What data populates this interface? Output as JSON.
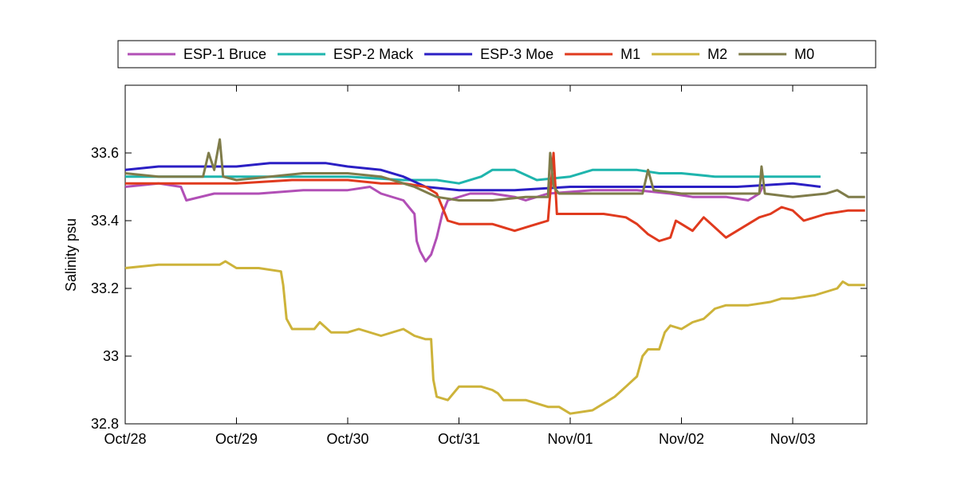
{
  "chart_data": {
    "type": "line",
    "title": "",
    "xlabel": "",
    "ylabel": "Salinity psu",
    "x_ticks": [
      "Oct/28",
      "Oct/29",
      "Oct/30",
      "Oct/31",
      "Nov/01",
      "Nov/02",
      "Nov/03"
    ],
    "xlim_days": [
      0,
      6.65
    ],
    "ylim": [
      32.8,
      33.8
    ],
    "y_ticks": [
      32.8,
      33.0,
      33.2,
      33.4,
      33.6
    ],
    "y_tick_labels": [
      "32.8",
      "33",
      "33.2",
      "33.4",
      "33.6"
    ],
    "grid": false,
    "legend_position": "top, outside, horizontal",
    "series": [
      {
        "name": "ESP-1 Bruce",
        "color": "#b14fb6",
        "points": [
          [
            0,
            33.5
          ],
          [
            0.3,
            33.51
          ],
          [
            0.5,
            33.5
          ],
          [
            0.55,
            33.46
          ],
          [
            0.8,
            33.48
          ],
          [
            1.2,
            33.48
          ],
          [
            1.6,
            33.49
          ],
          [
            2.0,
            33.49
          ],
          [
            2.2,
            33.5
          ],
          [
            2.3,
            33.48
          ],
          [
            2.5,
            33.46
          ],
          [
            2.55,
            33.44
          ],
          [
            2.6,
            33.42
          ],
          [
            2.62,
            33.34
          ],
          [
            2.65,
            33.31
          ],
          [
            2.7,
            33.28
          ],
          [
            2.75,
            33.3
          ],
          [
            2.8,
            33.35
          ],
          [
            2.85,
            33.42
          ],
          [
            2.9,
            33.46
          ],
          [
            3.1,
            33.48
          ],
          [
            3.3,
            33.48
          ],
          [
            3.5,
            33.47
          ],
          [
            3.6,
            33.46
          ],
          [
            3.8,
            33.48
          ],
          [
            4.2,
            33.49
          ],
          [
            4.6,
            33.49
          ],
          [
            4.9,
            33.48
          ],
          [
            5.1,
            33.47
          ],
          [
            5.4,
            33.47
          ],
          [
            5.6,
            33.46
          ],
          [
            5.7,
            33.48
          ],
          [
            5.73,
            33.5
          ]
        ]
      },
      {
        "name": "ESP-2 Mack",
        "color": "#1fb5ad",
        "points": [
          [
            0,
            33.53
          ],
          [
            0.5,
            33.53
          ],
          [
            1.0,
            33.53
          ],
          [
            1.5,
            33.53
          ],
          [
            2.0,
            33.53
          ],
          [
            2.5,
            33.52
          ],
          [
            2.8,
            33.52
          ],
          [
            3.0,
            33.51
          ],
          [
            3.2,
            33.53
          ],
          [
            3.3,
            33.55
          ],
          [
            3.5,
            33.55
          ],
          [
            3.7,
            33.52
          ],
          [
            4.0,
            33.53
          ],
          [
            4.2,
            33.55
          ],
          [
            4.4,
            33.55
          ],
          [
            4.6,
            33.55
          ],
          [
            4.8,
            33.54
          ],
          [
            5.0,
            33.54
          ],
          [
            5.3,
            33.53
          ],
          [
            5.5,
            33.53
          ],
          [
            5.8,
            33.53
          ],
          [
            6.0,
            33.53
          ],
          [
            6.25,
            33.53
          ]
        ]
      },
      {
        "name": "ESP-3 Moe",
        "color": "#2b1fc4",
        "points": [
          [
            0,
            33.55
          ],
          [
            0.3,
            33.56
          ],
          [
            0.6,
            33.56
          ],
          [
            1.0,
            33.56
          ],
          [
            1.3,
            33.57
          ],
          [
            1.6,
            33.57
          ],
          [
            1.8,
            33.57
          ],
          [
            2.0,
            33.56
          ],
          [
            2.3,
            33.55
          ],
          [
            2.5,
            33.53
          ],
          [
            2.7,
            33.5
          ],
          [
            3.0,
            33.49
          ],
          [
            3.5,
            33.49
          ],
          [
            4.0,
            33.5
          ],
          [
            4.5,
            33.5
          ],
          [
            5.0,
            33.5
          ],
          [
            5.5,
            33.5
          ],
          [
            6.0,
            33.51
          ],
          [
            6.25,
            33.5
          ]
        ]
      },
      {
        "name": "M1",
        "color": "#e03a1e",
        "points": [
          [
            0,
            33.51
          ],
          [
            0.5,
            33.51
          ],
          [
            1.0,
            33.51
          ],
          [
            1.5,
            33.52
          ],
          [
            2.0,
            33.52
          ],
          [
            2.3,
            33.51
          ],
          [
            2.5,
            33.51
          ],
          [
            2.7,
            33.5
          ],
          [
            2.8,
            33.48
          ],
          [
            2.85,
            33.44
          ],
          [
            2.9,
            33.4
          ],
          [
            3.0,
            33.39
          ],
          [
            3.3,
            33.39
          ],
          [
            3.5,
            33.37
          ],
          [
            3.7,
            33.39
          ],
          [
            3.8,
            33.4
          ],
          [
            3.85,
            33.6
          ],
          [
            3.88,
            33.42
          ],
          [
            4.0,
            33.42
          ],
          [
            4.3,
            33.42
          ],
          [
            4.5,
            33.41
          ],
          [
            4.6,
            33.39
          ],
          [
            4.7,
            33.36
          ],
          [
            4.8,
            33.34
          ],
          [
            4.9,
            33.35
          ],
          [
            4.95,
            33.4
          ],
          [
            5.0,
            33.39
          ],
          [
            5.1,
            33.37
          ],
          [
            5.2,
            33.41
          ],
          [
            5.3,
            33.38
          ],
          [
            5.4,
            33.35
          ],
          [
            5.5,
            33.37
          ],
          [
            5.7,
            33.41
          ],
          [
            5.8,
            33.42
          ],
          [
            5.9,
            33.44
          ],
          [
            6.0,
            33.43
          ],
          [
            6.1,
            33.4
          ],
          [
            6.3,
            33.42
          ],
          [
            6.5,
            33.43
          ],
          [
            6.65,
            33.43
          ]
        ]
      },
      {
        "name": "M2",
        "color": "#cdb33a",
        "points": [
          [
            0,
            33.26
          ],
          [
            0.3,
            33.27
          ],
          [
            0.6,
            33.27
          ],
          [
            0.85,
            33.27
          ],
          [
            0.9,
            33.28
          ],
          [
            1.0,
            33.26
          ],
          [
            1.2,
            33.26
          ],
          [
            1.4,
            33.25
          ],
          [
            1.42,
            33.21
          ],
          [
            1.45,
            33.11
          ],
          [
            1.5,
            33.08
          ],
          [
            1.7,
            33.08
          ],
          [
            1.75,
            33.1
          ],
          [
            1.85,
            33.07
          ],
          [
            2.0,
            33.07
          ],
          [
            2.1,
            33.08
          ],
          [
            2.3,
            33.06
          ],
          [
            2.5,
            33.08
          ],
          [
            2.6,
            33.06
          ],
          [
            2.7,
            33.05
          ],
          [
            2.75,
            33.05
          ],
          [
            2.77,
            32.93
          ],
          [
            2.8,
            32.88
          ],
          [
            2.9,
            32.87
          ],
          [
            3.0,
            32.91
          ],
          [
            3.2,
            32.91
          ],
          [
            3.3,
            32.9
          ],
          [
            3.35,
            32.89
          ],
          [
            3.4,
            32.87
          ],
          [
            3.6,
            32.87
          ],
          [
            3.8,
            32.85
          ],
          [
            3.9,
            32.85
          ],
          [
            4.0,
            32.83
          ],
          [
            4.2,
            32.84
          ],
          [
            4.3,
            32.86
          ],
          [
            4.4,
            32.88
          ],
          [
            4.5,
            32.91
          ],
          [
            4.6,
            32.94
          ],
          [
            4.65,
            33.0
          ],
          [
            4.7,
            33.02
          ],
          [
            4.8,
            33.02
          ],
          [
            4.85,
            33.07
          ],
          [
            4.9,
            33.09
          ],
          [
            5.0,
            33.08
          ],
          [
            5.1,
            33.1
          ],
          [
            5.2,
            33.11
          ],
          [
            5.3,
            33.14
          ],
          [
            5.4,
            33.15
          ],
          [
            5.6,
            33.15
          ],
          [
            5.8,
            33.16
          ],
          [
            5.9,
            33.17
          ],
          [
            6.0,
            33.17
          ],
          [
            6.2,
            33.18
          ],
          [
            6.4,
            33.2
          ],
          [
            6.45,
            33.22
          ],
          [
            6.5,
            33.21
          ],
          [
            6.65,
            33.21
          ]
        ]
      },
      {
        "name": "M0",
        "color": "#7f7c4a",
        "points": [
          [
            0,
            33.54
          ],
          [
            0.3,
            33.53
          ],
          [
            0.6,
            33.53
          ],
          [
            0.7,
            33.53
          ],
          [
            0.75,
            33.6
          ],
          [
            0.8,
            33.55
          ],
          [
            0.85,
            33.64
          ],
          [
            0.88,
            33.53
          ],
          [
            1.0,
            33.52
          ],
          [
            1.3,
            33.53
          ],
          [
            1.6,
            33.54
          ],
          [
            2.0,
            33.54
          ],
          [
            2.3,
            33.53
          ],
          [
            2.6,
            33.5
          ],
          [
            2.8,
            33.47
          ],
          [
            3.0,
            33.46
          ],
          [
            3.3,
            33.46
          ],
          [
            3.6,
            33.47
          ],
          [
            3.8,
            33.47
          ],
          [
            3.82,
            33.6
          ],
          [
            3.85,
            33.5
          ],
          [
            3.9,
            33.48
          ],
          [
            4.2,
            33.48
          ],
          [
            4.5,
            33.48
          ],
          [
            4.65,
            33.48
          ],
          [
            4.7,
            33.55
          ],
          [
            4.75,
            33.49
          ],
          [
            5.0,
            33.48
          ],
          [
            5.3,
            33.48
          ],
          [
            5.6,
            33.48
          ],
          [
            5.7,
            33.48
          ],
          [
            5.72,
            33.56
          ],
          [
            5.75,
            33.48
          ],
          [
            6.0,
            33.47
          ],
          [
            6.3,
            33.48
          ],
          [
            6.4,
            33.49
          ],
          [
            6.5,
            33.47
          ],
          [
            6.65,
            33.47
          ]
        ]
      }
    ]
  }
}
